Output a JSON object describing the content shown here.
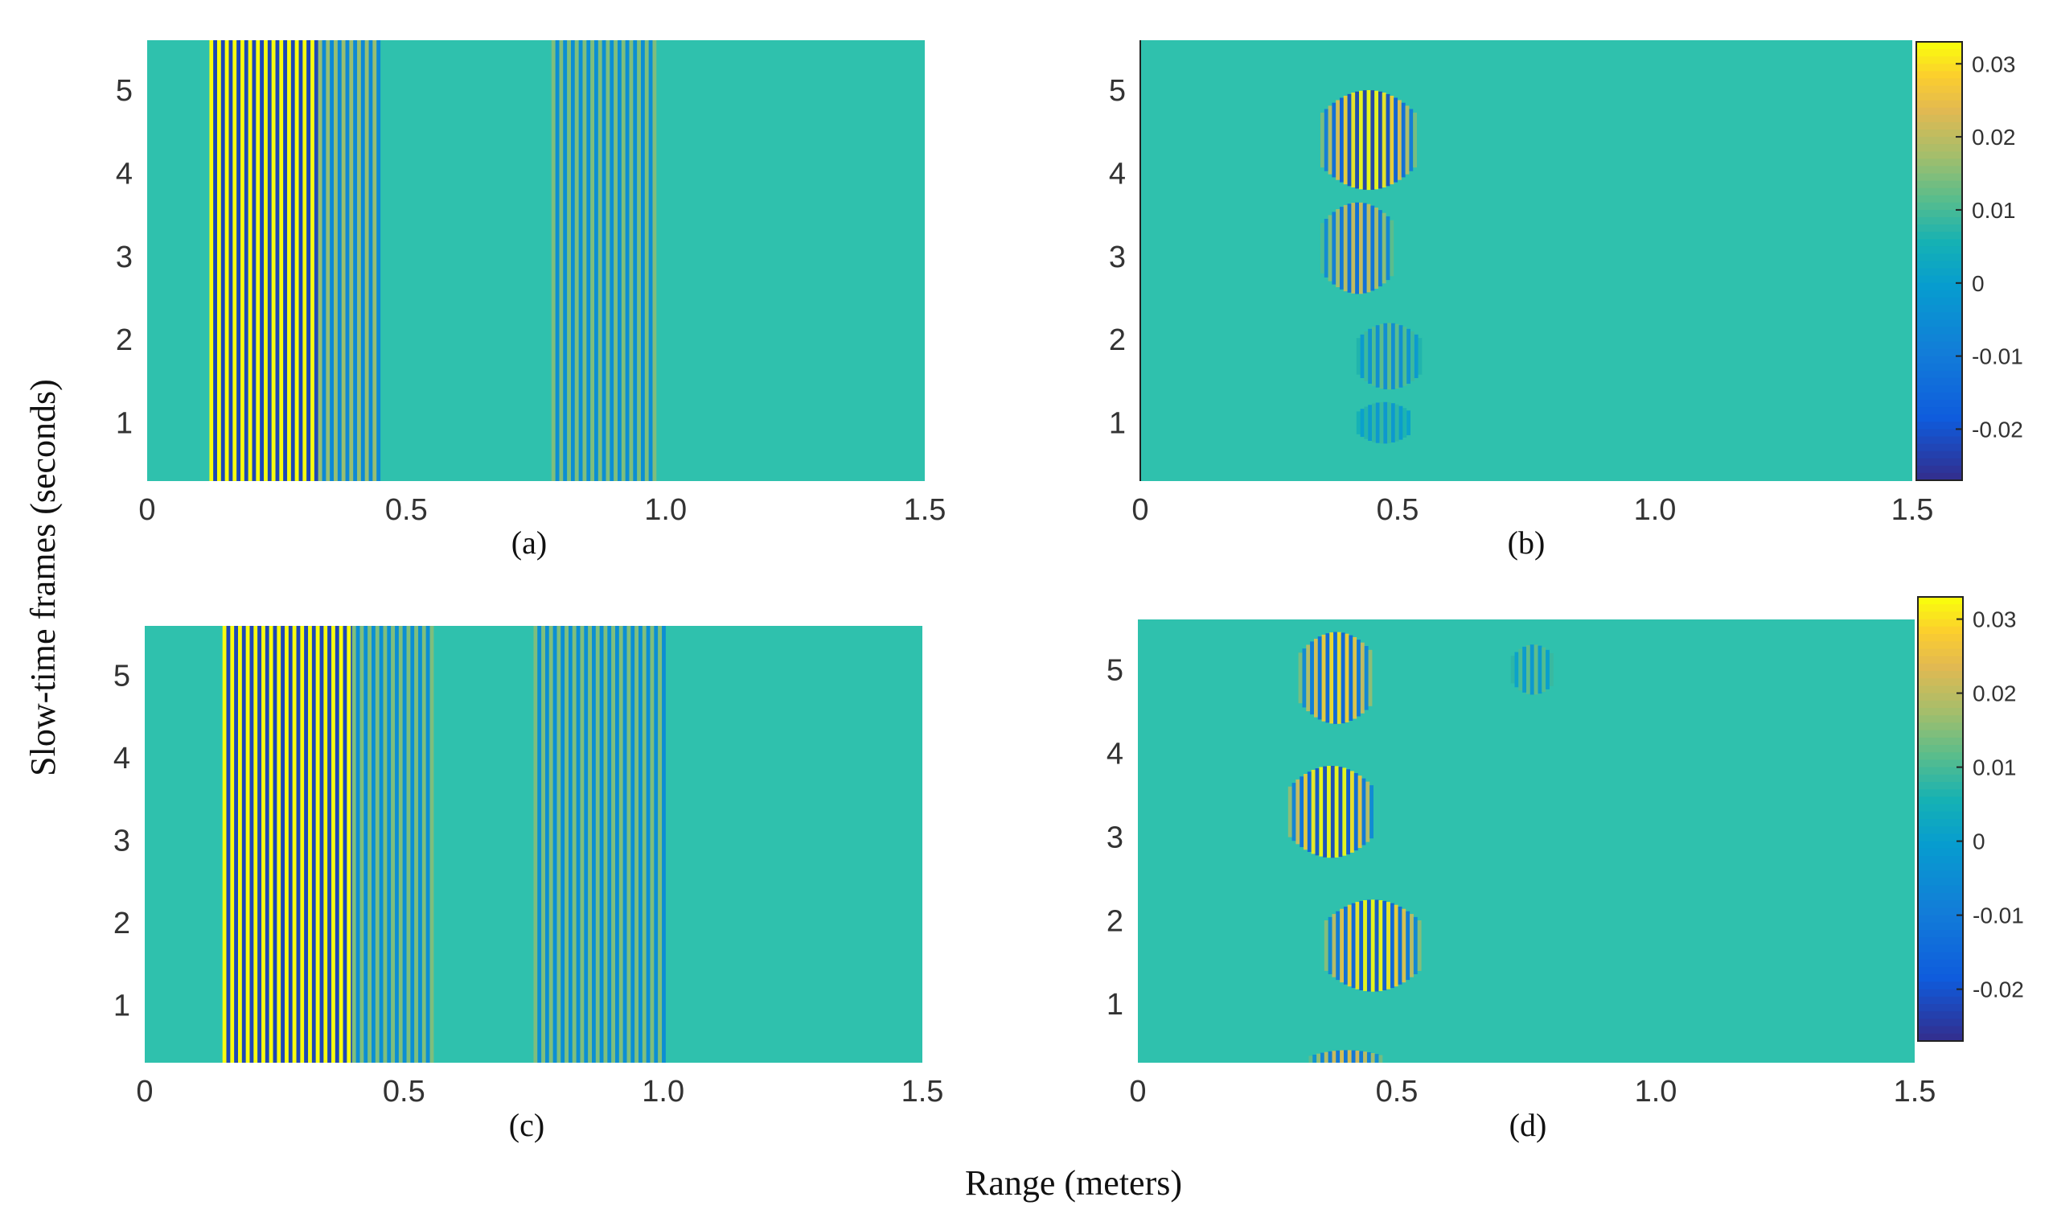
{
  "figure": {
    "xlabel": "Range (meters)",
    "ylabel": "Slow-time frames (seconds)"
  },
  "chart_data": [
    {
      "type": "heatmap",
      "panel": "(a)",
      "xlim": [
        0,
        1.5
      ],
      "ylim": [
        0.3,
        5.6
      ],
      "xticks": [
        0,
        0.5,
        1.0,
        1.5
      ],
      "xtick_labels": [
        "0",
        "0.5",
        "1.0",
        "1.5"
      ],
      "yticks": [
        1,
        2,
        3,
        4,
        5
      ],
      "ytick_labels": [
        "1",
        "2",
        "3",
        "4",
        "5"
      ],
      "background_value": 0.005,
      "features": [
        {
          "kind": "stationary-stripes",
          "x_start": 0.12,
          "x_end": 0.33,
          "amplitude": 0.03
        },
        {
          "kind": "stationary-stripes",
          "x_start": 0.33,
          "x_end": 0.45,
          "amplitude": 0.012
        },
        {
          "kind": "stationary-stripes",
          "x_start": 0.78,
          "x_end": 0.98,
          "amplitude": 0.01
        }
      ]
    },
    {
      "type": "heatmap",
      "panel": "(b)",
      "xlim": [
        0,
        1.5
      ],
      "ylim": [
        0.3,
        5.6
      ],
      "xticks": [
        0,
        0.5,
        1.0,
        1.5
      ],
      "xtick_labels": [
        "0",
        "0.5",
        "1.0",
        "1.5"
      ],
      "yticks": [
        1,
        2,
        3,
        4,
        5
      ],
      "ytick_labels": [
        "1",
        "2",
        "3",
        "4",
        "5"
      ],
      "background_value": 0.003,
      "colorbar": {
        "ticks": [
          0.03,
          0.02,
          0.01,
          0,
          -0.01,
          -0.02
        ],
        "tick_labels": [
          "0.03",
          "0.02",
          "0.01",
          "0",
          "-0.01",
          "-0.02"
        ],
        "range": [
          -0.027,
          0.033
        ]
      },
      "features": [
        {
          "kind": "moving-target",
          "x_center": 0.44,
          "x_halfwidth": 0.09,
          "y_center": 4.4,
          "y_halfwidth": 0.6,
          "amplitude": 0.03
        },
        {
          "kind": "moving-target",
          "x_center": 0.42,
          "x_halfwidth": 0.07,
          "y_center": 3.1,
          "y_halfwidth": 0.55,
          "amplitude": 0.02
        },
        {
          "kind": "moving-target",
          "x_center": 0.48,
          "x_halfwidth": 0.06,
          "y_center": 1.8,
          "y_halfwidth": 0.4,
          "amplitude": 0.01
        },
        {
          "kind": "moving-target",
          "x_center": 0.47,
          "x_halfwidth": 0.05,
          "y_center": 1.0,
          "y_halfwidth": 0.25,
          "amplitude": 0.006
        }
      ]
    },
    {
      "type": "heatmap",
      "panel": "(c)",
      "xlim": [
        0,
        1.5
      ],
      "ylim": [
        0.3,
        5.6
      ],
      "xticks": [
        0,
        0.5,
        1.0,
        1.5
      ],
      "xtick_labels": [
        "0",
        "0.5",
        "1.0",
        "1.5"
      ],
      "yticks": [
        1,
        2,
        3,
        4,
        5
      ],
      "ytick_labels": [
        "1",
        "2",
        "3",
        "4",
        "5"
      ],
      "background_value": 0.005,
      "features": [
        {
          "kind": "stationary-stripes",
          "x_start": 0.15,
          "x_end": 0.4,
          "amplitude": 0.03
        },
        {
          "kind": "stationary-stripes",
          "x_start": 0.4,
          "x_end": 0.55,
          "amplitude": 0.01
        },
        {
          "kind": "stationary-stripes",
          "x_start": 0.75,
          "x_end": 1.0,
          "amplitude": 0.01
        }
      ]
    },
    {
      "type": "heatmap",
      "panel": "(d)",
      "xlim": [
        0,
        1.5
      ],
      "ylim": [
        0.3,
        5.6
      ],
      "xticks": [
        0,
        0.5,
        1.0,
        1.5
      ],
      "xtick_labels": [
        "0",
        "0.5",
        "1.0",
        "1.5"
      ],
      "yticks": [
        1,
        2,
        3,
        4,
        5
      ],
      "ytick_labels": [
        "1",
        "2",
        "3",
        "4",
        "5"
      ],
      "background_value": 0.005,
      "colorbar": {
        "ticks": [
          0.03,
          0.02,
          0.01,
          0,
          -0.01,
          -0.02
        ],
        "tick_labels": [
          "0.03",
          "0.02",
          "0.01",
          "0",
          "-0.01",
          "-0.02"
        ],
        "range": [
          -0.027,
          0.033
        ]
      },
      "features": [
        {
          "kind": "moving-target",
          "x_center": 0.38,
          "x_halfwidth": 0.07,
          "y_center": 4.9,
          "y_halfwidth": 0.55,
          "amplitude": 0.025
        },
        {
          "kind": "moving-target",
          "x_center": 0.37,
          "x_halfwidth": 0.08,
          "y_center": 3.3,
          "y_halfwidth": 0.55,
          "amplitude": 0.03
        },
        {
          "kind": "moving-target",
          "x_center": 0.45,
          "x_halfwidth": 0.09,
          "y_center": 1.7,
          "y_halfwidth": 0.55,
          "amplitude": 0.028
        },
        {
          "kind": "moving-target",
          "x_center": 0.4,
          "x_halfwidth": 0.07,
          "y_center": 0.3,
          "y_halfwidth": 0.15,
          "amplitude": 0.02
        },
        {
          "kind": "moving-target",
          "x_center": 0.76,
          "x_halfwidth": 0.04,
          "y_center": 5.0,
          "y_halfwidth": 0.3,
          "amplitude": 0.008
        }
      ]
    }
  ]
}
